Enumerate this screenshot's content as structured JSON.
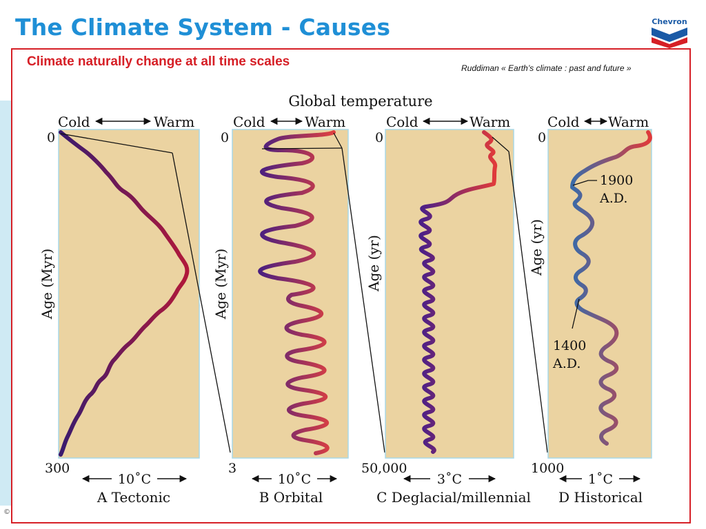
{
  "slide": {
    "title": "The Climate System - Causes",
    "copyright": "©",
    "logo_text": "Chevron",
    "colors": {
      "title": "#1f8fd6",
      "accent_red": "#d61f26",
      "panel_fill": "#ebd3a1",
      "logo_blue": "#1a5aa6",
      "side_strip": "#cfeaf4"
    }
  },
  "frame": {
    "subtitle": "Climate naturally change at all time scales",
    "citation": "Ruddiman « Earth’s climate : past and future »"
  },
  "figure": {
    "header": "Global temperature",
    "cold_label": "Cold",
    "warm_label": "Warm",
    "panels": [
      {
        "id": "A",
        "caption": "A  Tectonic",
        "y_axis_label": "Age (Myr)",
        "top_value": "0",
        "bottom_value": "300",
        "scale_label": "10˚C",
        "curve_color": "#801a3c"
      },
      {
        "id": "B",
        "caption": "B  Orbital",
        "y_axis_label": "Age (Myr)",
        "top_value": "0",
        "bottom_value": "3",
        "scale_label": "10˚C",
        "curve_color": "#b03050"
      },
      {
        "id": "C",
        "caption": "C  Deglacial/millennial",
        "y_axis_label": "Age (yr)",
        "top_value": "0",
        "bottom_value": "50,000",
        "scale_label": "3˚C",
        "curve_color": "#5a2a90"
      },
      {
        "id": "D",
        "caption": "D  Historical",
        "y_axis_label": "Age (yr)",
        "top_value": "0",
        "bottom_value": "1000",
        "scale_label": "1˚C",
        "curve_color": "#8a4a80"
      }
    ],
    "annotations": [
      {
        "line1": "1900",
        "line2": "A.D."
      },
      {
        "line1": "1400",
        "line2": "A.D."
      }
    ]
  }
}
